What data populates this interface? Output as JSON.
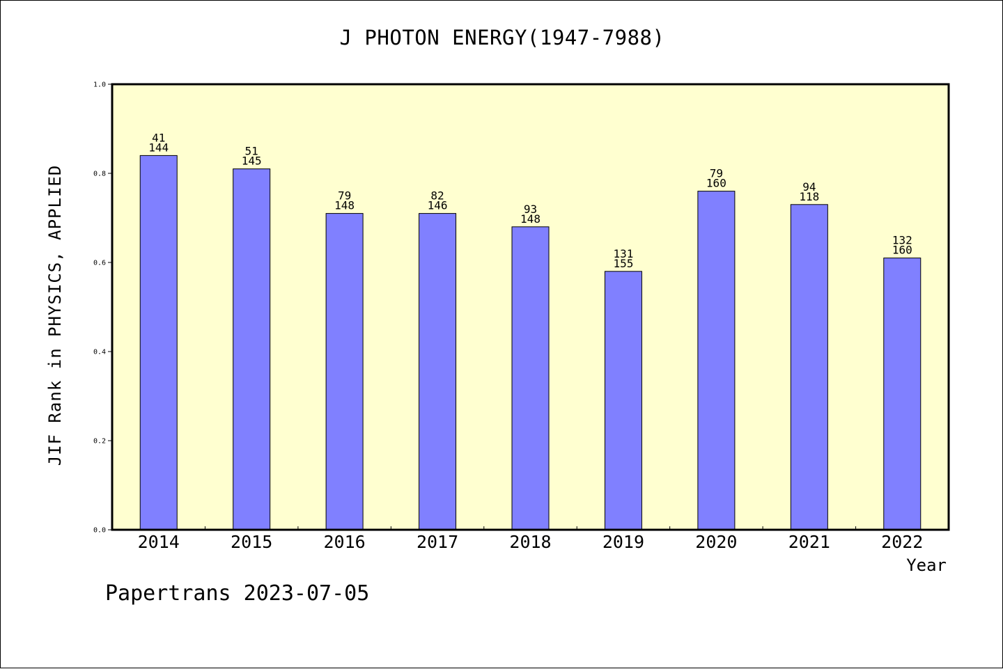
{
  "chart_data": {
    "type": "bar",
    "title": "J PHOTON ENERGY(1947-7988)",
    "xlabel": "Year",
    "ylabel": "JIF Rank in PHYSICS, APPLIED",
    "ylim": [
      0,
      1.0
    ],
    "yticks": [
      "0.0",
      "0.2",
      "0.4",
      "0.6",
      "0.8",
      "1.0"
    ],
    "categories": [
      "2014",
      "2015",
      "2016",
      "2017",
      "2018",
      "2019",
      "2020",
      "2021",
      "2022"
    ],
    "values": [
      0.84,
      0.81,
      0.71,
      0.71,
      0.68,
      0.58,
      0.76,
      0.73,
      0.61
    ],
    "ranks": [
      "41",
      "51",
      "79",
      "82",
      "93",
      "131",
      "79",
      "94",
      "132"
    ],
    "totals": [
      "144",
      "145",
      "148",
      "146",
      "148",
      "155",
      "160",
      "118",
      "160"
    ],
    "grid": false,
    "colors": {
      "bar": "#8080ff",
      "plot_background": "#ffffd0",
      "frame": "#000000"
    }
  },
  "footer": "Papertrans 2023-07-05"
}
